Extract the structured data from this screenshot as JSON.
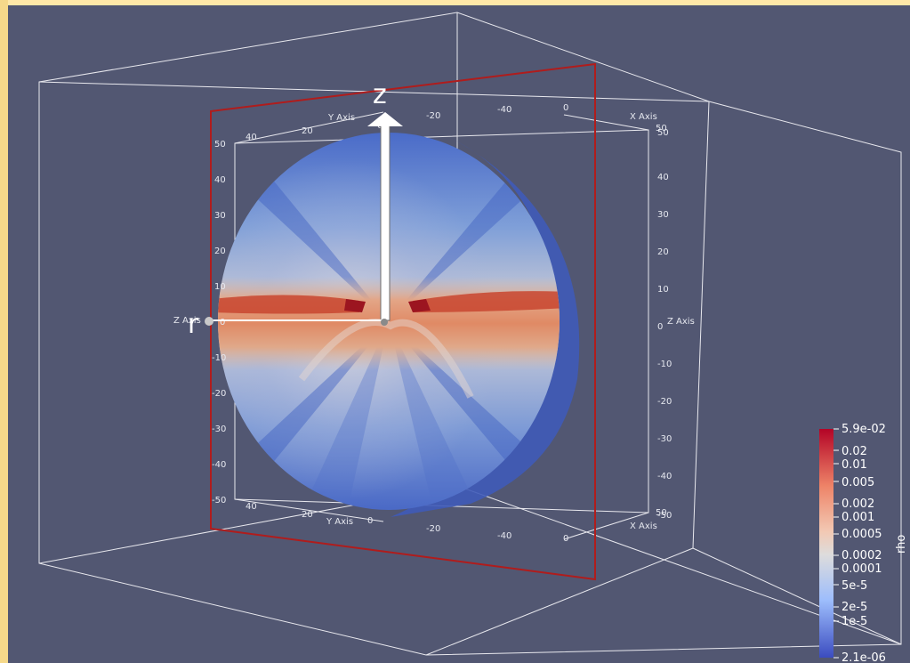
{
  "viewport": {
    "background": "#525772",
    "frame_color": "#ffe8a8"
  },
  "axes": {
    "y_axis_title": "Y Axis",
    "x_axis_title": "X Axis",
    "z_axis_title_left": "Z Axis",
    "z_axis_title_right": "Z Axis",
    "vertical_ticks_left": [
      "50",
      "40",
      "30",
      "20",
      "10",
      "0",
      "-10",
      "-20",
      "-30",
      "-40",
      "-50"
    ],
    "vertical_ticks_right": [
      "50",
      "40",
      "30",
      "20",
      "10",
      "0",
      "-10",
      "-20",
      "-30",
      "-40",
      "-50"
    ],
    "top_y_ticks": [
      "40",
      "20",
      "0",
      "-20",
      "-40"
    ],
    "top_x_ticks": [
      "0",
      "50"
    ],
    "bottom_y_ticks": [
      "40",
      "20",
      "0",
      "-20",
      "-40"
    ],
    "bottom_x_ticks": [
      "0",
      "50"
    ]
  },
  "annotations": {
    "z_arrow_label": "z",
    "r_arrow_label": "r"
  },
  "colorbar": {
    "title": "rho",
    "ticks": [
      "5.9e-02",
      "0.02",
      "0.01",
      "0.005",
      "0.002",
      "0.001",
      "0.0005",
      "0.0002",
      "0.0001",
      "5e-5",
      "2e-5",
      "1e-5",
      "2.1e-06"
    ],
    "colors": {
      "high": "#b40426",
      "mid": "#dddcdc",
      "low": "#3b4cc0"
    }
  }
}
